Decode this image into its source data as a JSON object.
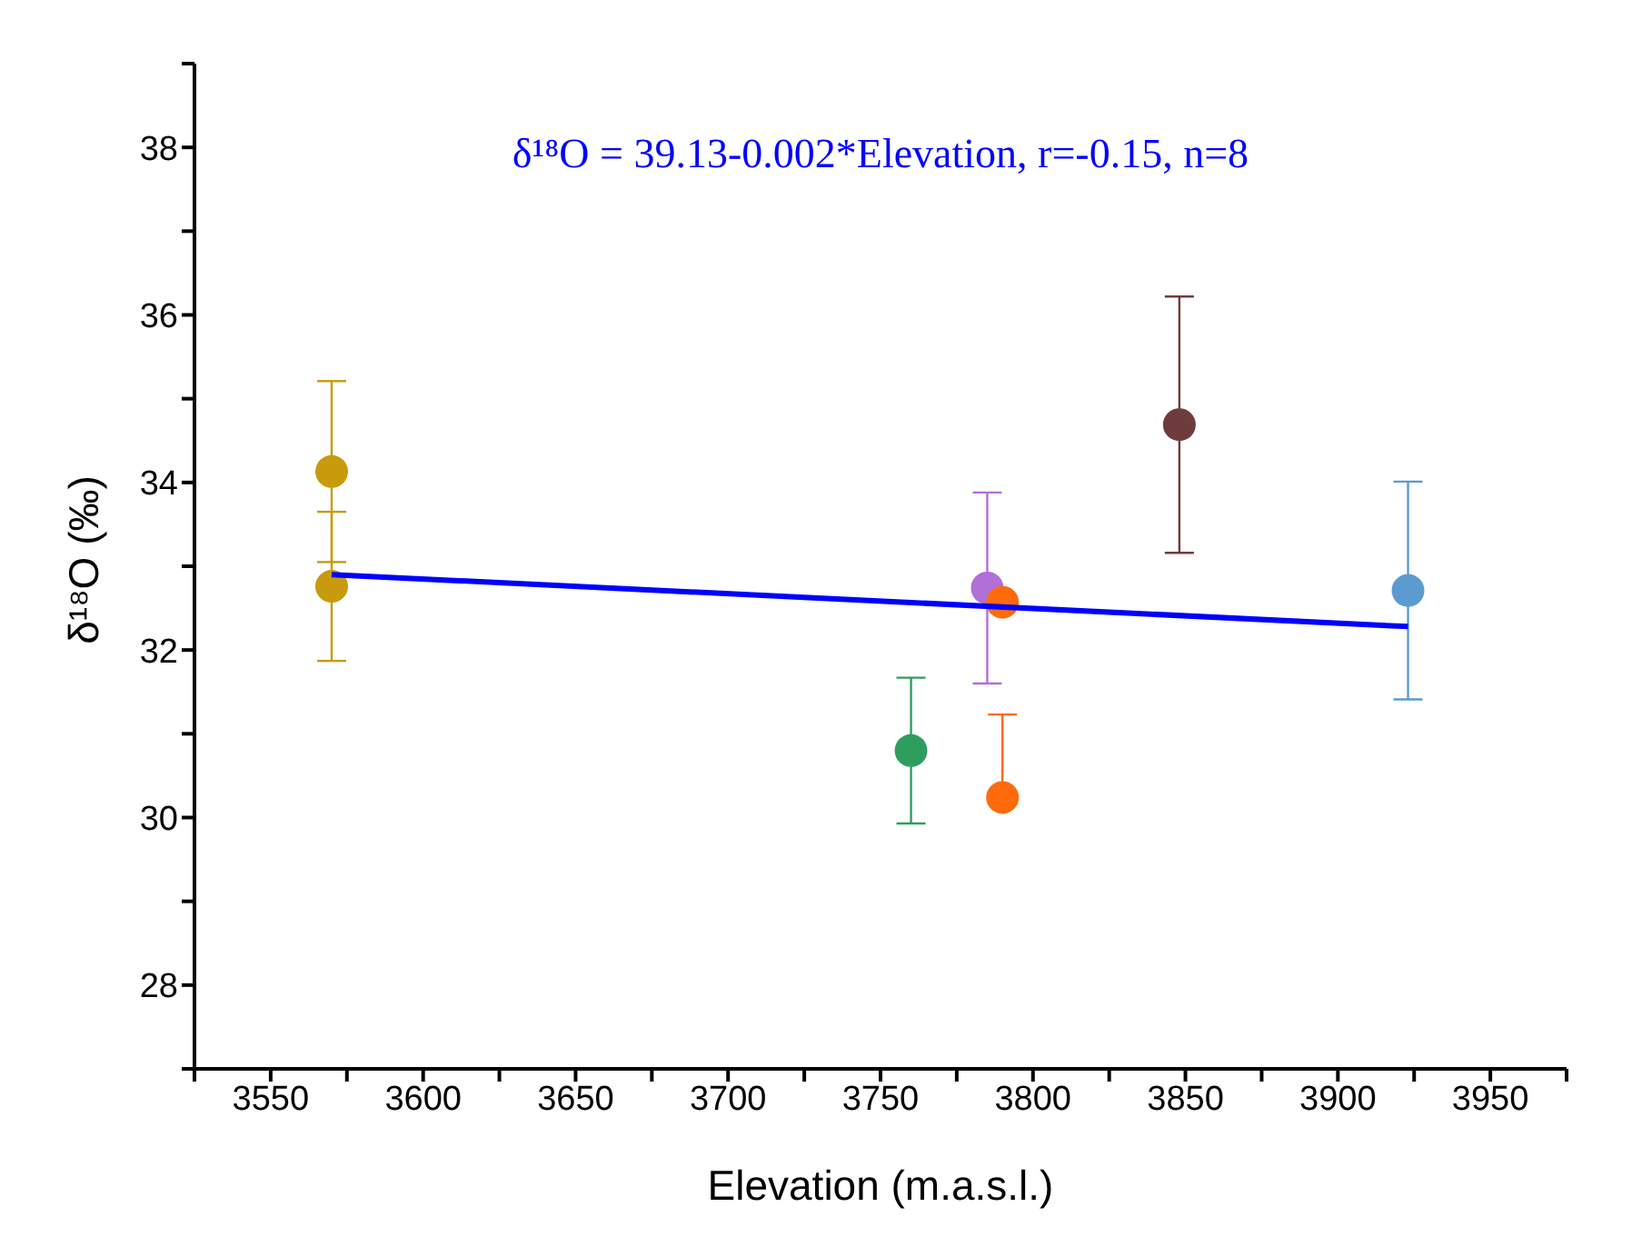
{
  "chart_data": {
    "type": "scatter",
    "xlabel": "Elevation (m.a.s.l.)",
    "ylabel": "δ¹⁸O (‰)",
    "annotations": [
      "δ¹⁸O = 39.13-0.002*Elevation, r=-0.15, n=8"
    ],
    "xlim": [
      3525,
      3975
    ],
    "ylim": [
      27,
      39
    ],
    "xticks": [
      {
        "value": 3525,
        "label": null
      },
      3550,
      {
        "value": 3575,
        "label": null
      },
      3600,
      {
        "value": 3625,
        "label": null
      },
      3650,
      {
        "value": 3675,
        "label": null
      },
      3700,
      {
        "value": 3725,
        "label": null
      },
      3750,
      {
        "value": 3775,
        "label": null
      },
      3800,
      {
        "value": 3825,
        "label": null
      },
      3850,
      {
        "value": 3875,
        "label": null
      },
      3900,
      {
        "value": 3925,
        "label": null
      },
      3950,
      {
        "value": 3975,
        "label": null
      }
    ],
    "yticks": [
      {
        "value": 27,
        "label": null
      },
      28,
      {
        "value": 29,
        "label": null
      },
      30,
      {
        "value": 31,
        "label": null
      },
      32,
      {
        "value": 33,
        "label": null
      },
      34,
      {
        "value": 35,
        "label": null
      },
      36,
      {
        "value": 37,
        "label": null
      },
      38,
      {
        "value": 39,
        "label": null
      }
    ],
    "marker": "circle",
    "series": [
      {
        "color": "#c89b0c",
        "x": [
          3570,
          3570
        ],
        "values": [
          34.13,
          32.76
        ],
        "errors": [
          1.08,
          0.89
        ]
      },
      {
        "color": "#2e9e5e",
        "x": [
          3760
        ],
        "values": [
          30.8
        ],
        "errors": [
          0.87
        ]
      },
      {
        "color": "#b070d8",
        "x": [
          3785
        ],
        "values": [
          32.74
        ],
        "errors": [
          1.14
        ]
      },
      {
        "color": "#ff6a0c",
        "x": [
          3790,
          3790
        ],
        "values": [
          32.57,
          30.24
        ],
        "errors": [
          null,
          [
            30.24,
            31.23
          ]
        ]
      },
      {
        "color": "#6e3c3c",
        "x": [
          3848
        ],
        "values": [
          34.69
        ],
        "errors": [
          1.53
        ]
      },
      {
        "color": "#5b9bd0",
        "x": [
          3923
        ],
        "values": [
          32.71
        ],
        "errors": [
          1.3
        ]
      },
      {
        "type": "line",
        "color": "#0000ff",
        "x": [
          3570,
          3923
        ],
        "values": [
          32.9,
          32.28
        ],
        "marker": "none"
      }
    ]
  }
}
